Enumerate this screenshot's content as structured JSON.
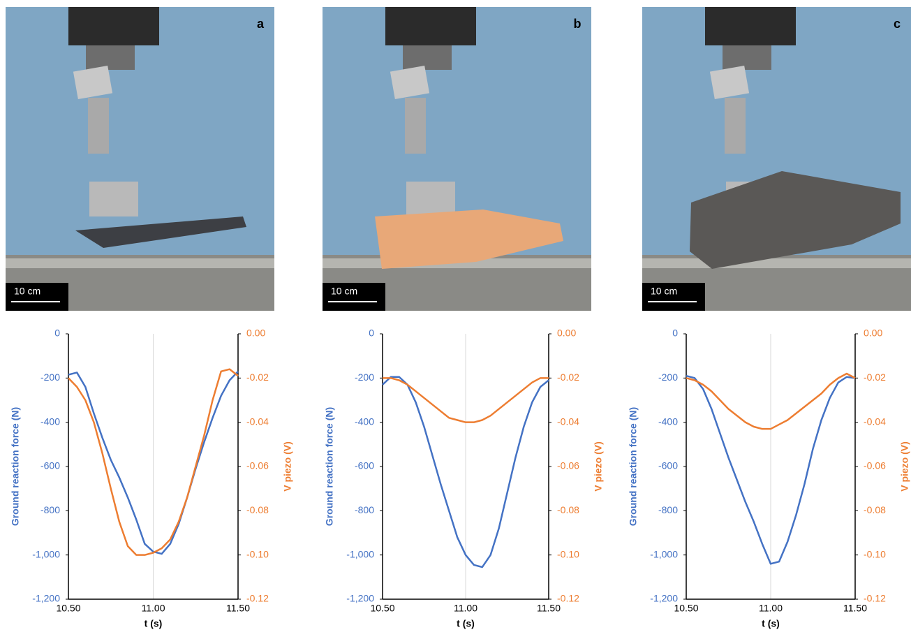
{
  "panels": [
    {
      "label": "a",
      "scale_bar": "10 cm"
    },
    {
      "label": "b",
      "scale_bar": "10 cm"
    },
    {
      "label": "c",
      "scale_bar": "10 cm"
    }
  ],
  "chart_data": [
    {
      "type": "line",
      "ylabel": "Ground reaction force (N)",
      "y2label": "V piezo (V)",
      "xlabel": "t (s)",
      "grid": "x",
      "x": [
        10.5,
        10.55,
        10.6,
        10.65,
        10.7,
        10.75,
        10.8,
        10.85,
        10.9,
        10.95,
        11.0,
        11.05,
        11.1,
        11.15,
        11.2,
        11.25,
        11.3,
        11.35,
        11.4,
        11.45,
        11.5
      ],
      "xlim": [
        10.5,
        11.5
      ],
      "xticks": [
        {
          "value": 10.5,
          "label": "10.50"
        },
        {
          "value": 11.0,
          "label": "11.00"
        },
        {
          "value": 11.5,
          "label": "11.50"
        }
      ],
      "ylim": [
        -1200,
        0
      ],
      "yticks": [
        {
          "value": -1200,
          "label": "-1,200"
        },
        {
          "value": -1000,
          "label": "-1,000"
        },
        -800,
        -600,
        -400,
        -200,
        0
      ],
      "y2lim": [
        -0.12,
        0
      ],
      "y2ticks": [
        {
          "value": -0.12,
          "label": "-0.12"
        },
        {
          "value": -0.1,
          "label": "-0.10"
        },
        {
          "value": -0.08,
          "label": "-0.08"
        },
        {
          "value": -0.06,
          "label": "-0.06"
        },
        {
          "value": -0.04,
          "label": "-0.04"
        },
        {
          "value": -0.02,
          "label": "-0.02"
        },
        {
          "value": 0,
          "label": "0.00"
        }
      ],
      "series": [
        {
          "color": "#4472c4",
          "axis": "y",
          "values": [
            -185,
            -175,
            -240,
            -360,
            -470,
            -570,
            -650,
            -740,
            -840,
            -950,
            -985,
            -995,
            -950,
            -860,
            -740,
            -610,
            -490,
            -380,
            -280,
            -210,
            -170
          ]
        },
        {
          "color": "#ed7d31",
          "axis": "y2",
          "values": [
            -0.02,
            -0.024,
            -0.03,
            -0.04,
            -0.054,
            -0.07,
            -0.085,
            -0.096,
            -0.1,
            -0.1,
            -0.099,
            -0.097,
            -0.093,
            -0.085,
            -0.074,
            -0.06,
            -0.046,
            -0.03,
            -0.017,
            -0.016,
            -0.019
          ]
        }
      ]
    },
    {
      "type": "line",
      "ylabel": "Ground reaction force (N)",
      "y2label": "V piezo (V)",
      "xlabel": "t (s)",
      "grid": "x",
      "x": [
        10.5,
        10.55,
        10.6,
        10.65,
        10.7,
        10.75,
        10.8,
        10.85,
        10.9,
        10.95,
        11.0,
        11.05,
        11.1,
        11.15,
        11.2,
        11.25,
        11.3,
        11.35,
        11.4,
        11.45,
        11.5
      ],
      "xlim": [
        10.5,
        11.5
      ],
      "xticks": [
        {
          "value": 10.5,
          "label": "10.50"
        },
        {
          "value": 11.0,
          "label": "11.00"
        },
        {
          "value": 11.5,
          "label": "11.50"
        }
      ],
      "ylim": [
        -1200,
        0
      ],
      "yticks": [
        {
          "value": -1200,
          "label": "-1,200"
        },
        {
          "value": -1000,
          "label": "-1,000"
        },
        -800,
        -600,
        -400,
        -200,
        0
      ],
      "y2lim": [
        -0.12,
        0
      ],
      "y2ticks": [
        {
          "value": -0.12,
          "label": "-0.12"
        },
        {
          "value": -0.1,
          "label": "-0.10"
        },
        {
          "value": -0.08,
          "label": "-0.08"
        },
        {
          "value": -0.06,
          "label": "-0.06"
        },
        {
          "value": -0.04,
          "label": "-0.04"
        },
        {
          "value": -0.02,
          "label": "-0.02"
        },
        {
          "value": 0,
          "label": "0.00"
        }
      ],
      "series": [
        {
          "color": "#4472c4",
          "axis": "y",
          "values": [
            -230,
            -195,
            -195,
            -230,
            -310,
            -420,
            -550,
            -680,
            -800,
            -920,
            -1000,
            -1045,
            -1055,
            -1000,
            -880,
            -720,
            -560,
            -420,
            -310,
            -240,
            -210
          ]
        },
        {
          "color": "#ed7d31",
          "axis": "y2",
          "values": [
            -0.02,
            -0.02,
            -0.021,
            -0.023,
            -0.026,
            -0.029,
            -0.032,
            -0.035,
            -0.038,
            -0.039,
            -0.04,
            -0.04,
            -0.039,
            -0.037,
            -0.034,
            -0.031,
            -0.028,
            -0.025,
            -0.022,
            -0.02,
            -0.02
          ]
        }
      ]
    },
    {
      "type": "line",
      "ylabel": "Ground reaction force (N)",
      "y2label": "V piezo (V)",
      "xlabel": "t (s)",
      "grid": "x",
      "x": [
        10.5,
        10.55,
        10.6,
        10.65,
        10.7,
        10.75,
        10.8,
        10.85,
        10.9,
        10.95,
        11.0,
        11.05,
        11.1,
        11.15,
        11.2,
        11.25,
        11.3,
        11.35,
        11.4,
        11.45,
        11.5
      ],
      "xlim": [
        10.5,
        11.5
      ],
      "xticks": [
        {
          "value": 10.5,
          "label": "10.50"
        },
        {
          "value": 11.0,
          "label": "11.00"
        },
        {
          "value": 11.5,
          "label": "11.50"
        }
      ],
      "ylim": [
        -1200,
        0
      ],
      "yticks": [
        {
          "value": -1200,
          "label": "-1,200"
        },
        {
          "value": -1000,
          "label": "-1,000"
        },
        -800,
        -600,
        -400,
        -200,
        0
      ],
      "y2lim": [
        -0.12,
        0
      ],
      "y2ticks": [
        {
          "value": -0.12,
          "label": "-0.12"
        },
        {
          "value": -0.1,
          "label": "-0.10"
        },
        {
          "value": -0.08,
          "label": "-0.08"
        },
        {
          "value": -0.06,
          "label": "-0.06"
        },
        {
          "value": -0.04,
          "label": "-0.04"
        },
        {
          "value": -0.02,
          "label": "-0.02"
        },
        {
          "value": 0,
          "label": "0.00"
        }
      ],
      "series": [
        {
          "color": "#4472c4",
          "axis": "y",
          "values": [
            -190,
            -200,
            -250,
            -340,
            -450,
            -560,
            -660,
            -760,
            -850,
            -950,
            -1040,
            -1030,
            -940,
            -820,
            -680,
            -520,
            -390,
            -290,
            -220,
            -195,
            -200
          ]
        },
        {
          "color": "#ed7d31",
          "axis": "y2",
          "values": [
            -0.02,
            -0.021,
            -0.023,
            -0.026,
            -0.03,
            -0.034,
            -0.037,
            -0.04,
            -0.042,
            -0.043,
            -0.043,
            -0.041,
            -0.039,
            -0.036,
            -0.033,
            -0.03,
            -0.027,
            -0.023,
            -0.02,
            -0.018,
            -0.02
          ]
        }
      ]
    }
  ]
}
